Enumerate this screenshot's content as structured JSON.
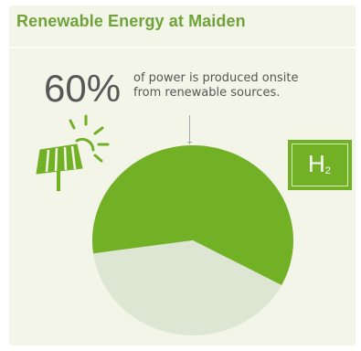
{
  "title": "Renewable Energy at Maiden",
  "stat": {
    "value": "60%",
    "line1": "of power is produced onsite",
    "line2": "from renewable sources."
  },
  "icons": {
    "solar": "solar-panel-icon",
    "hydrogen": "hydrogen-h2-icon"
  },
  "h2_label": {
    "symbol": "H",
    "subscript": "2"
  },
  "colors": {
    "title": "#6fa33a",
    "primary": "#72b026",
    "secondary": "#dde6d2",
    "background": "#f3f5e8",
    "text": "#575757"
  },
  "chart_data": {
    "type": "pie",
    "series": [
      {
        "value": 60,
        "color": "#72b026"
      },
      {
        "value": 40,
        "color": "#dde6d2"
      }
    ]
  }
}
